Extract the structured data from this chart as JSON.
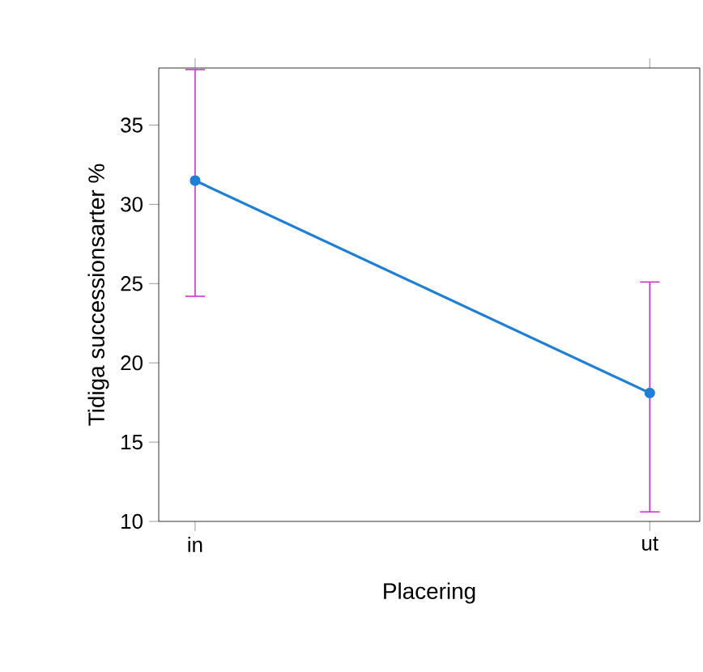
{
  "chart_data": {
    "type": "line",
    "xlabel": "Placering",
    "ylabel": "Tidiga successionsarter %",
    "categories": [
      "in",
      "ut"
    ],
    "series": [
      {
        "color": "#1f7fd6",
        "values": [
          31.5,
          18.1
        ],
        "errors": [
          [
            24.2,
            38.5
          ],
          [
            10.6,
            25.1
          ]
        ]
      }
    ],
    "ylim": [
      10,
      38.6
    ],
    "yticks": [
      10,
      15,
      20,
      25,
      30,
      35
    ],
    "grid": false,
    "marker": "circle",
    "line_style": "solid"
  }
}
